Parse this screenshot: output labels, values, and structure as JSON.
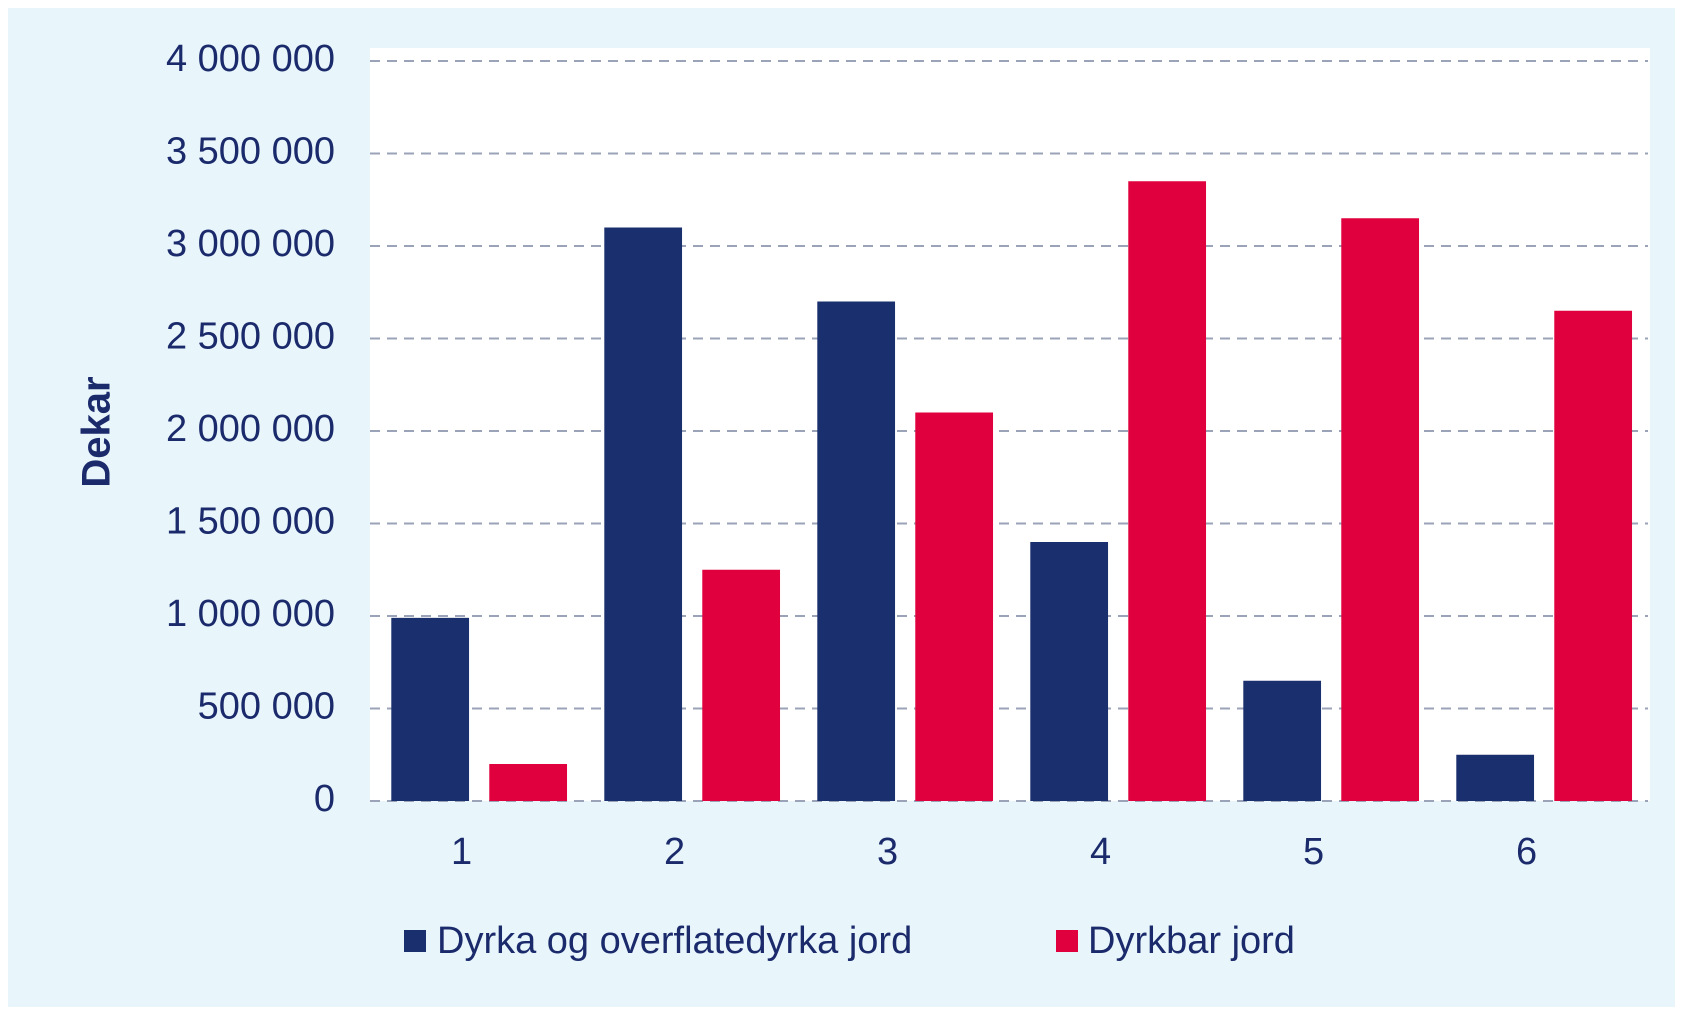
{
  "chart_data": {
    "type": "bar",
    "y_label": "Dekar",
    "categories": [
      "1",
      "2",
      "3",
      "4",
      "5",
      "6"
    ],
    "series": [
      {
        "name": "Dyrka og overflatedyrka jord",
        "color": "#1a2f6d",
        "values": [
          990000,
          3100000,
          2700000,
          1400000,
          650000,
          250000
        ]
      },
      {
        "name": "Dyrkbar jord",
        "color": "#e0003d",
        "values": [
          200000,
          1250000,
          2100000,
          3350000,
          3150000,
          2650000
        ]
      }
    ],
    "ylim": [
      0,
      4000000
    ],
    "yticks": [
      0,
      {
        "value": 500000,
        "label": "500 000"
      },
      {
        "value": 1000000,
        "label": "1 000 000"
      },
      {
        "value": 1500000,
        "label": "1 500 000"
      },
      {
        "value": 2000000,
        "label": "2 000 000"
      },
      {
        "value": 2500000,
        "label": "2 500 000"
      },
      {
        "value": 3000000,
        "label": "3 000 000"
      },
      {
        "value": 3500000,
        "label": "3 500 000"
      },
      {
        "value": 4000000,
        "label": "4 000 000"
      }
    ],
    "grid": true,
    "legend": "bottom"
  }
}
